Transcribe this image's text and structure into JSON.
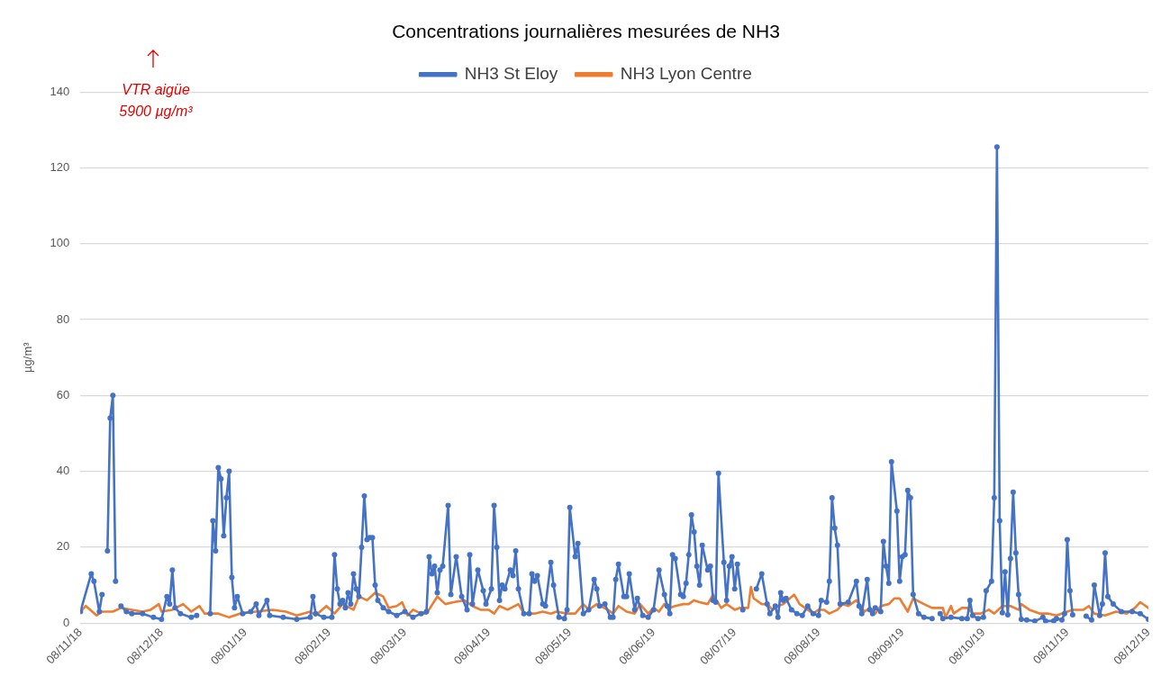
{
  "chart_data": {
    "type": "line",
    "title": "Concentrations journalières mesurées de NH3",
    "ylabel": "µg/m³",
    "annotations": [
      "VTR aigüe\n5900 µg/m³"
    ],
    "xlim": [
      "2018-11-08",
      "2019-12-08"
    ],
    "xticks": [
      {
        "value": "2018-11-08",
        "label": "08/11/18"
      },
      {
        "value": "2018-12-08",
        "label": "08/12/18"
      },
      {
        "value": "2019-01-08",
        "label": "08/01/19"
      },
      {
        "value": "2019-02-08",
        "label": "08/02/19"
      },
      {
        "value": "2019-03-08",
        "label": "08/03/19"
      },
      {
        "value": "2019-04-08",
        "label": "08/04/19"
      },
      {
        "value": "2019-05-08",
        "label": "08/05/19"
      },
      {
        "value": "2019-06-08",
        "label": "08/06/19"
      },
      {
        "value": "2019-07-08",
        "label": "08/07/19"
      },
      {
        "value": "2019-08-08",
        "label": "08/08/19"
      },
      {
        "value": "2019-09-08",
        "label": "08/09/19"
      },
      {
        "value": "2019-10-08",
        "label": "08/10/19"
      },
      {
        "value": "2019-11-08",
        "label": "08/11/19"
      },
      {
        "value": "2019-12-08",
        "label": "08/12/19"
      }
    ],
    "ylim": [
      0,
      140
    ],
    "yticks": [
      0,
      20,
      40,
      60,
      80,
      100,
      120,
      140
    ],
    "grid": "y",
    "legend": "top",
    "series": [
      {
        "name": "NH3 St Eloy",
        "color": "#4472c4",
        "marker": "circle",
        "x": [
          "2018-11-08",
          "2018-11-12",
          "2018-11-13",
          "2018-11-15",
          "2018-11-16",
          "2018-11-17",
          "2018-11-18",
          "2018-11-19",
          "2018-11-20",
          "2018-11-21",
          "2018-11-22",
          "2018-11-23",
          "2018-11-25",
          "2018-11-27",
          "2018-12-01",
          "2018-12-05",
          "2018-12-08",
          "2018-12-10",
          "2018-12-11",
          "2018-12-12",
          "2018-12-13",
          "2018-12-15",
          "2018-12-19",
          "2018-12-21",
          "2018-12-22",
          "2018-12-26",
          "2018-12-27",
          "2018-12-28",
          "2018-12-29",
          "2018-12-30",
          "2018-12-31",
          "2019-01-01",
          "2019-01-02",
          "2019-01-03",
          "2019-01-04",
          "2019-01-05",
          "2019-01-07",
          "2019-01-10",
          "2019-01-12",
          "2019-01-13",
          "2019-01-16",
          "2019-01-17",
          "2019-01-22",
          "2019-01-27",
          "2019-02-01",
          "2019-02-02",
          "2019-02-03",
          "2019-02-06",
          "2019-02-09",
          "2019-02-10",
          "2019-02-11",
          "2019-02-12",
          "2019-02-13",
          "2019-02-14",
          "2019-02-15",
          "2019-02-16",
          "2019-02-17",
          "2019-02-18",
          "2019-02-19",
          "2019-02-20",
          "2019-02-21",
          "2019-02-22",
          "2019-02-23",
          "2019-02-24",
          "2019-02-25",
          "2019-02-26",
          "2019-02-28",
          "2019-03-02",
          "2019-03-05",
          "2019-03-08",
          "2019-03-11",
          "2019-03-14",
          "2019-03-16",
          "2019-03-17",
          "2019-03-18",
          "2019-03-19",
          "2019-03-20",
          "2019-03-21",
          "2019-03-22",
          "2019-03-24",
          "2019-03-25",
          "2019-03-27",
          "2019-03-29",
          "2019-03-31",
          "2019-04-01",
          "2019-04-02",
          "2019-04-04",
          "2019-04-06",
          "2019-04-07",
          "2019-04-09",
          "2019-04-10",
          "2019-04-11",
          "2019-04-12",
          "2019-04-13",
          "2019-04-14",
          "2019-04-16",
          "2019-04-17",
          "2019-04-18",
          "2019-04-19",
          "2019-04-21",
          "2019-04-23",
          "2019-04-24",
          "2019-04-25",
          "2019-04-26",
          "2019-04-28",
          "2019-04-29",
          "2019-05-01",
          "2019-05-02",
          "2019-05-04",
          "2019-05-06",
          "2019-05-07",
          "2019-05-08",
          "2019-05-10",
          "2019-05-11",
          "2019-05-13",
          "2019-05-15",
          "2019-05-17",
          "2019-05-18",
          "2019-05-19",
          "2019-05-21",
          "2019-05-23",
          "2019-05-24",
          "2019-05-25",
          "2019-05-26",
          "2019-05-28",
          "2019-05-29",
          "2019-05-30",
          "2019-06-01",
          "2019-06-02",
          "2019-06-04",
          "2019-06-06",
          "2019-06-08",
          "2019-06-10",
          "2019-06-12",
          "2019-06-13",
          "2019-06-14",
          "2019-06-15",
          "2019-06-16",
          "2019-06-18",
          "2019-06-19",
          "2019-06-20",
          "2019-06-21",
          "2019-06-22",
          "2019-06-23",
          "2019-06-24",
          "2019-06-25",
          "2019-06-26",
          "2019-06-28",
          "2019-06-29",
          "2019-06-30",
          "2019-07-01",
          "2019-07-02",
          "2019-07-04",
          "2019-07-05",
          "2019-07-06",
          "2019-07-07",
          "2019-07-08",
          "2019-07-09",
          "2019-07-11",
          "2019-07-12",
          "2019-07-16",
          "2019-07-18",
          "2019-07-20",
          "2019-07-21",
          "2019-07-23",
          "2019-07-24",
          "2019-07-25",
          "2019-07-26",
          "2019-07-27",
          "2019-07-29",
          "2019-07-31",
          "2019-08-02",
          "2019-08-04",
          "2019-08-06",
          "2019-08-08",
          "2019-08-09",
          "2019-08-11",
          "2019-08-12",
          "2019-08-13",
          "2019-08-14",
          "2019-08-15",
          "2019-08-16",
          "2019-08-19",
          "2019-08-22",
          "2019-08-23",
          "2019-08-24",
          "2019-08-26",
          "2019-08-27",
          "2019-08-28",
          "2019-08-29",
          "2019-08-31",
          "2019-09-01",
          "2019-09-02",
          "2019-09-03",
          "2019-09-04",
          "2019-09-06",
          "2019-09-07",
          "2019-09-08",
          "2019-09-09",
          "2019-09-10",
          "2019-09-11",
          "2019-09-12",
          "2019-09-14",
          "2019-09-16",
          "2019-09-19",
          "2019-09-20",
          "2019-09-22",
          "2019-09-23",
          "2019-09-26",
          "2019-09-30",
          "2019-10-02",
          "2019-10-03",
          "2019-10-04",
          "2019-10-06",
          "2019-10-08",
          "2019-10-09",
          "2019-10-11",
          "2019-10-12",
          "2019-10-13",
          "2019-10-14",
          "2019-10-15",
          "2019-10-16",
          "2019-10-17",
          "2019-10-18",
          "2019-10-19",
          "2019-10-20",
          "2019-10-21",
          "2019-10-22",
          "2019-10-24",
          "2019-10-27",
          "2019-10-30",
          "2019-10-31",
          "2019-11-03",
          "2019-11-04",
          "2019-11-06",
          "2019-11-07",
          "2019-11-08",
          "2019-11-09",
          "2019-11-10",
          "2019-11-11",
          "2019-11-15",
          "2019-11-17",
          "2019-11-18",
          "2019-11-20",
          "2019-11-21",
          "2019-11-22",
          "2019-11-23",
          "2019-11-25",
          "2019-11-28",
          "2019-12-02",
          "2019-12-05",
          "2019-12-08"
        ],
        "values": [
          3,
          13,
          11,
          3,
          7.5,
          null,
          19,
          54,
          60,
          11,
          null,
          4.5,
          3,
          2.5,
          2.5,
          1.5,
          1,
          7,
          5,
          14,
          4,
          2.5,
          1.5,
          2,
          null,
          2.5,
          27,
          19,
          41,
          38,
          23,
          33,
          40,
          12,
          4,
          7,
          2.5,
          3,
          5,
          2,
          6,
          2,
          1.5,
          1,
          1.5,
          7,
          2.5,
          1.5,
          1.5,
          18,
          9,
          5,
          6,
          4,
          8,
          5,
          13,
          9,
          7,
          20,
          33.5,
          22,
          22.5,
          22.5,
          10,
          6,
          4,
          3,
          2,
          3,
          1.5,
          2.5,
          3,
          17.5,
          13,
          15,
          8,
          14,
          15,
          31,
          7.5,
          17.5,
          7,
          3.5,
          18,
          5,
          14,
          8.5,
          5,
          9,
          31,
          20,
          6,
          10,
          9,
          14,
          12.5,
          19,
          9,
          2.5,
          2.5,
          13,
          11,
          12.5,
          5,
          4.5,
          16,
          10,
          1.5,
          1.2,
          3.5,
          30.5,
          17.5,
          21,
          2.5,
          3.5,
          11.5,
          9,
          4.5,
          5,
          1.5,
          1.5,
          11.5,
          15.5,
          7,
          7,
          13,
          3.5,
          6.5,
          2,
          1.5,
          3.5,
          14,
          7.5,
          4.5,
          2.5,
          18,
          17,
          7.5,
          7,
          10.5,
          18,
          28.5,
          24,
          15,
          10,
          20.5,
          14,
          15,
          6,
          5.5,
          39.5,
          16,
          6,
          15,
          17.5,
          9,
          15.5,
          3.5,
          null,
          9,
          13,
          5,
          2.5,
          4.5,
          1.5,
          8,
          6,
          6.5,
          3.5,
          2.5,
          2,
          4.5,
          2.5,
          2,
          6,
          5.5,
          11,
          33,
          25,
          20.5,
          5,
          5.5,
          11,
          4.5,
          2.5,
          11.5,
          3.5,
          2.5,
          4,
          3,
          21.5,
          15,
          10.5,
          42.5,
          29.5,
          11,
          17.5,
          18,
          35,
          33,
          7.5,
          2.5,
          1.5,
          1.2,
          null,
          2.5,
          1.2,
          1.5,
          1.2,
          1.2,
          6,
          2,
          1.2,
          1.5,
          8.5,
          11,
          33,
          125.5,
          27,
          2.7,
          13.5,
          2.2,
          17,
          34.5,
          18.5,
          7.5,
          1,
          0.8,
          0.5,
          1.5,
          0.5,
          0.6,
          1.2,
          0.8,
          2.5,
          22,
          8.5,
          2.2,
          null,
          1.8,
          0.8,
          10,
          2,
          5,
          18.5,
          7,
          5,
          3,
          3,
          2.5,
          1
        ]
      },
      {
        "name": "NH3 Lyon Centre",
        "color": "#ed7d31",
        "marker": "none",
        "x": [
          "2018-11-08",
          "2018-11-10",
          "2018-11-14",
          "2018-11-16",
          "2018-11-20",
          "2018-11-23",
          "2018-11-27",
          "2018-12-01",
          "2018-12-04",
          "2018-12-07",
          "2018-12-08",
          "2018-12-12",
          "2018-12-16",
          "2018-12-19",
          "2018-12-22",
          "2018-12-24",
          "2018-12-29",
          "2019-01-02",
          "2019-01-06",
          "2019-01-12",
          "2019-01-18",
          "2019-01-23",
          "2019-01-27",
          "2019-02-01",
          "2019-02-03",
          "2019-02-07",
          "2019-02-10",
          "2019-02-13",
          "2019-02-17",
          "2019-02-19",
          "2019-02-22",
          "2019-02-25",
          "2019-02-28",
          "2019-03-02",
          "2019-03-05",
          "2019-03-07",
          "2019-03-09",
          "2019-03-11",
          "2019-03-14",
          "2019-03-16",
          "2019-03-20",
          "2019-03-23",
          "2019-03-26",
          "2019-03-30",
          "2019-04-02",
          "2019-04-05",
          "2019-04-08",
          "2019-04-10",
          "2019-04-12",
          "2019-04-15",
          "2019-04-19",
          "2019-04-21",
          "2019-04-25",
          "2019-04-28",
          "2019-05-01",
          "2019-05-03",
          "2019-05-07",
          "2019-05-10",
          "2019-05-13",
          "2019-05-15",
          "2019-05-18",
          "2019-05-22",
          "2019-05-24",
          "2019-05-26",
          "2019-05-29",
          "2019-06-01",
          "2019-06-03",
          "2019-06-06",
          "2019-06-08",
          "2019-06-10",
          "2019-06-12",
          "2019-06-14",
          "2019-06-16",
          "2019-06-19",
          "2019-06-21",
          "2019-06-23",
          "2019-06-25",
          "2019-06-28",
          "2019-06-30",
          "2019-07-03",
          "2019-07-05",
          "2019-07-08",
          "2019-07-10",
          "2019-07-13",
          "2019-07-14",
          "2019-07-15",
          "2019-07-18",
          "2019-07-20",
          "2019-07-22",
          "2019-07-24",
          "2019-07-26",
          "2019-07-30",
          "2019-08-01",
          "2019-08-04",
          "2019-08-06",
          "2019-08-08",
          "2019-08-10",
          "2019-08-12",
          "2019-08-15",
          "2019-08-17",
          "2019-08-19",
          "2019-08-22",
          "2019-08-25",
          "2019-08-27",
          "2019-08-29",
          "2019-08-31",
          "2019-09-03",
          "2019-09-05",
          "2019-09-07",
          "2019-09-10",
          "2019-09-12",
          "2019-09-16",
          "2019-09-19",
          "2019-09-23",
          "2019-09-24",
          "2019-09-26",
          "2019-09-27",
          "2019-09-30",
          "2019-10-02",
          "2019-10-04",
          "2019-10-07",
          "2019-10-10",
          "2019-10-12",
          "2019-10-15",
          "2019-10-18",
          "2019-10-21",
          "2019-10-22",
          "2019-10-25",
          "2019-10-29",
          "2019-11-01",
          "2019-11-04",
          "2019-11-08",
          "2019-11-10",
          "2019-11-14",
          "2019-11-16",
          "2019-11-18",
          "2019-11-22",
          "2019-11-26",
          "2019-11-30",
          "2019-12-03",
          "2019-12-05",
          "2019-12-08"
        ],
        "values": [
          3,
          4.5,
          2,
          3,
          3,
          4,
          3.5,
          3,
          3.5,
          5,
          3,
          3.5,
          5,
          3,
          4.5,
          2.5,
          2.5,
          1.5,
          2.5,
          3,
          3.5,
          3,
          2,
          3,
          2,
          4.5,
          2.5,
          5,
          3.5,
          7,
          6,
          8,
          7,
          4,
          4.5,
          5.5,
          2,
          3.5,
          2.5,
          2.5,
          7,
          5,
          5.5,
          6,
          4.5,
          3.5,
          3.5,
          2.5,
          4.5,
          3.5,
          5,
          2.5,
          2.5,
          3,
          2.5,
          3,
          2.5,
          2.5,
          5,
          3.5,
          5,
          3.5,
          2.5,
          4.5,
          3,
          2.5,
          5,
          2.5,
          4,
          3,
          5,
          4,
          4.5,
          5,
          5,
          6,
          5.5,
          5,
          7.5,
          4,
          5,
          3.5,
          4,
          4,
          9.5,
          6.5,
          5,
          5,
          3.5,
          4.5,
          5,
          7.5,
          5,
          3.5,
          2.5,
          3.5,
          3.5,
          2.5,
          3.5,
          5,
          4.5,
          6,
          3,
          4,
          2.5,
          4.5,
          5,
          6.5,
          6.5,
          3,
          6.5,
          5,
          4,
          4,
          1.5,
          4.5,
          2.5,
          4,
          4,
          2.5,
          2.5,
          3.5,
          2.5,
          4.5,
          4.5,
          3.5,
          5,
          3.5,
          2.5,
          2.5,
          2,
          3,
          3.5,
          3.5,
          4.5,
          2.5,
          2,
          3,
          2.5,
          4,
          5.5,
          4
        ]
      }
    ]
  }
}
